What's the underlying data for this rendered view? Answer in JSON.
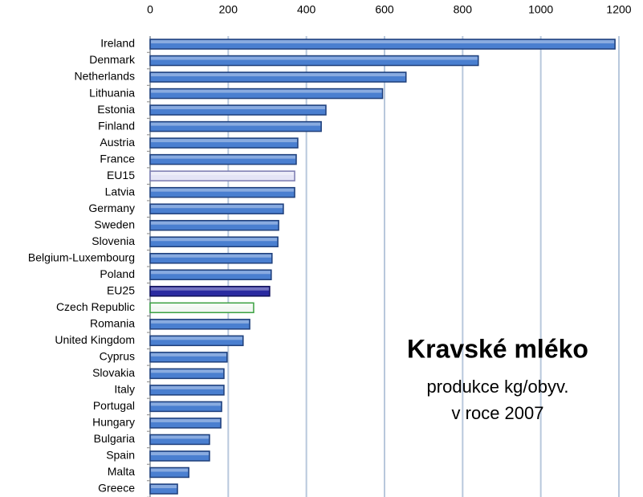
{
  "chart_data": {
    "type": "barh",
    "title": "Kravské mléko",
    "subtitle": [
      "produkce kg/obyv.",
      "v roce 2007"
    ],
    "categories": [
      "Ireland",
      "Denmark",
      "Netherlands",
      "Lithuania",
      "Estonia",
      "Finland",
      "Austria",
      "France",
      "EU15",
      "Latvia",
      "Germany",
      "Sweden",
      "Slovenia",
      "Belgium-Luxembourg",
      "Poland",
      "EU25",
      "Czech Republic",
      "Romania",
      "United Kingdom",
      "Cyprus",
      "Slovakia",
      "Italy",
      "Portugal",
      "Hungary",
      "Bulgaria",
      "Spain",
      "Malta",
      "Greece"
    ],
    "values": [
      1190,
      840,
      655,
      595,
      450,
      438,
      378,
      374,
      370,
      370,
      341,
      329,
      327,
      312,
      310,
      306,
      265,
      255,
      238,
      197,
      189,
      189,
      183,
      181,
      152,
      152,
      99,
      70
    ],
    "colors": [
      "#4a7fd0",
      "#4a7fd0",
      "#4a7fd0",
      "#4a7fd0",
      "#4a7fd0",
      "#4a7fd0",
      "#4a7fd0",
      "#4a7fd0",
      "#e4e4f6",
      "#4a7fd0",
      "#4a7fd0",
      "#4a7fd0",
      "#4a7fd0",
      "#4a7fd0",
      "#4a7fd0",
      "#2a2aa0",
      "#f2f7f2",
      "#4a7fd0",
      "#4a7fd0",
      "#4a7fd0",
      "#4a7fd0",
      "#4a7fd0",
      "#4a7fd0",
      "#4a7fd0",
      "#4a7fd0",
      "#4a7fd0",
      "#4a7fd0",
      "#4a7fd0"
    ],
    "edge_colors": [
      "#1f3f7a",
      "#1f3f7a",
      "#1f3f7a",
      "#1f3f7a",
      "#1f3f7a",
      "#1f3f7a",
      "#1f3f7a",
      "#1f3f7a",
      "#7a7ab0",
      "#1f3f7a",
      "#1f3f7a",
      "#1f3f7a",
      "#1f3f7a",
      "#1f3f7a",
      "#1f3f7a",
      "#10105a",
      "#3aa040",
      "#1f3f7a",
      "#1f3f7a",
      "#1f3f7a",
      "#1f3f7a",
      "#1f3f7a",
      "#1f3f7a",
      "#1f3f7a",
      "#1f3f7a",
      "#1f3f7a",
      "#1f3f7a",
      "#1f3f7a"
    ],
    "xlim": [
      0,
      1200
    ],
    "xticks": [
      0,
      200,
      400,
      600,
      800,
      1000,
      1200
    ],
    "grid": true
  }
}
